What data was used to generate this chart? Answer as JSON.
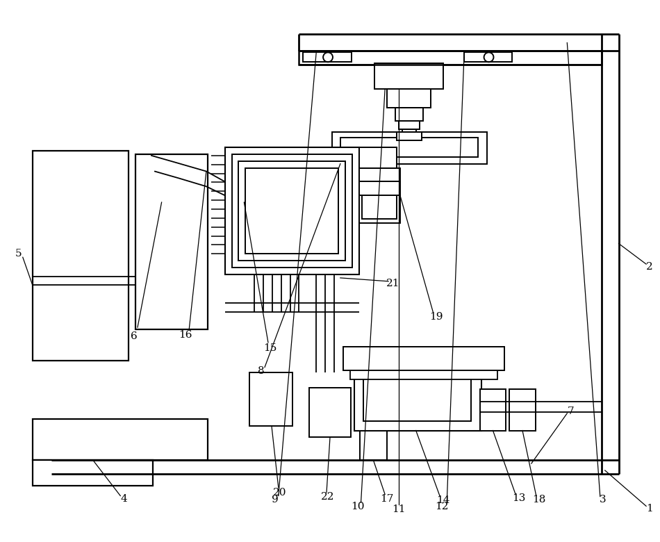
{
  "bg_color": "#ffffff",
  "lc": "#000000",
  "lw": 1.4,
  "fig_w": 9.5,
  "fig_h": 7.8
}
